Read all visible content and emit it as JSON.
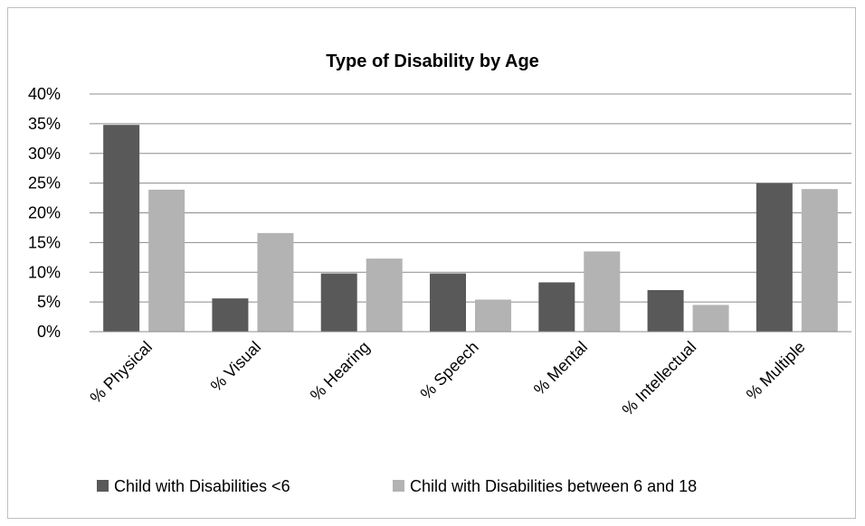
{
  "chart_data": {
    "type": "bar",
    "title": "Type of Disability by Age",
    "xlabel": "",
    "ylabel": "",
    "ylim": [
      0,
      0.4
    ],
    "yticks": [
      0,
      0.05,
      0.1,
      0.15,
      0.2,
      0.25,
      0.3,
      0.35,
      0.4
    ],
    "ytick_labels": [
      "0%",
      "5%",
      "10%",
      "15%",
      "20%",
      "25%",
      "30%",
      "35%",
      "40%"
    ],
    "grid": true,
    "legend_position": "bottom",
    "categories": [
      "% Physical",
      "% Visual",
      "% Hearing",
      "% Speech",
      "% Mental",
      "% Intellectual",
      "% Multiple"
    ],
    "series": [
      {
        "name": "Child with Disabilities <6",
        "color": "#595959",
        "values": [
          0.348,
          0.056,
          0.098,
          0.098,
          0.083,
          0.07,
          0.25
        ]
      },
      {
        "name": "Child with Disabilities between 6 and 18",
        "color": "#b3b3b3",
        "values": [
          0.239,
          0.166,
          0.123,
          0.054,
          0.135,
          0.045,
          0.24
        ]
      }
    ]
  }
}
